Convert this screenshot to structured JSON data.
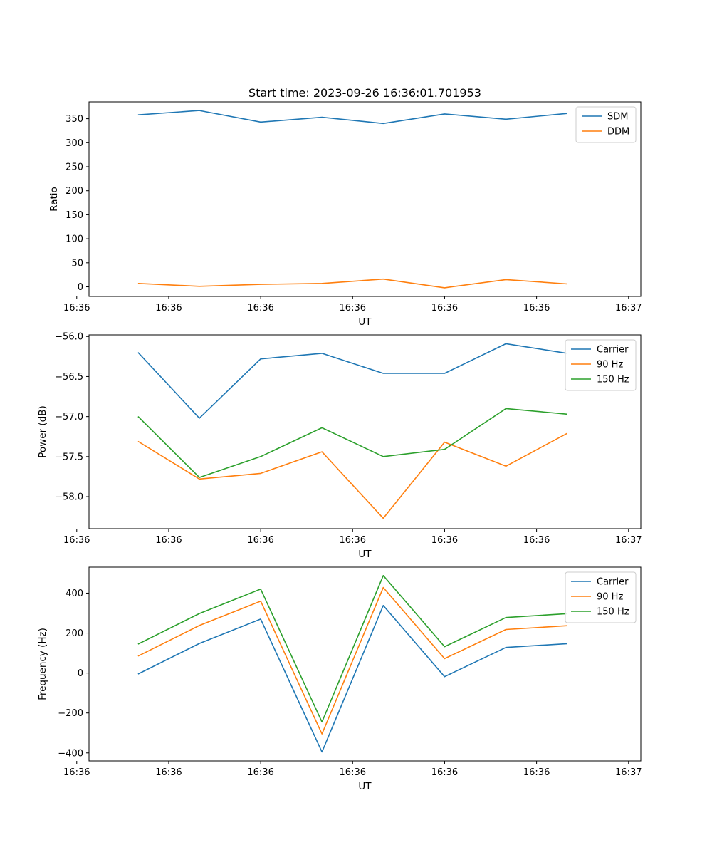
{
  "figure": {
    "title": "Start time: 2023-09-26 16:36:01.701953"
  },
  "colors": {
    "c0": "#1f77b4",
    "c1": "#ff7f0e",
    "c2": "#2ca02c"
  },
  "chart_data": [
    {
      "type": "line",
      "name": "ratio",
      "title": "Start time: 2023-09-26 16:36:01.701953",
      "xlabel": "UT",
      "ylabel": "Ratio",
      "x": [
        1,
        2,
        3,
        4,
        5,
        6,
        7,
        8
      ],
      "xlim": [
        0.2,
        9.2
      ],
      "x_ticks": [
        0,
        1.5,
        3,
        4.5,
        6,
        7.5,
        9
      ],
      "x_tick_labels": [
        "16:36",
        "16:36",
        "16:36",
        "16:36",
        "16:36",
        "16:36",
        "16:37"
      ],
      "ylim": [
        -20,
        385
      ],
      "y_ticks": [
        0,
        50,
        100,
        150,
        200,
        250,
        300,
        350
      ],
      "y_tick_labels": [
        "0",
        "50",
        "100",
        "150",
        "200",
        "250",
        "300",
        "350"
      ],
      "legend": "top-right",
      "series": [
        {
          "name": "SDM",
          "color": "#1f77b4",
          "values": [
            358,
            367,
            343,
            353,
            340,
            360,
            349,
            361
          ]
        },
        {
          "name": "DDM",
          "color": "#ff7f0e",
          "values": [
            7,
            1,
            5,
            7,
            16,
            -2,
            15,
            6
          ]
        }
      ]
    },
    {
      "type": "line",
      "name": "power",
      "xlabel": "UT",
      "ylabel": "Power (dB)",
      "x": [
        1,
        2,
        3,
        4,
        5,
        6,
        7,
        8
      ],
      "xlim": [
        0.2,
        9.2
      ],
      "x_ticks": [
        0,
        1.5,
        3,
        4.5,
        6,
        7.5,
        9
      ],
      "x_tick_labels": [
        "16:36",
        "16:36",
        "16:36",
        "16:36",
        "16:36",
        "16:36",
        "16:37"
      ],
      "ylim": [
        -58.4,
        -55.98
      ],
      "y_ticks": [
        -58.0,
        -57.5,
        -57.0,
        -56.5,
        -56.0
      ],
      "y_tick_labels": [
        "−58.0",
        "−57.5",
        "−57.0",
        "−56.5",
        "−56.0"
      ],
      "legend": "top-right",
      "series": [
        {
          "name": "Carrier",
          "color": "#1f77b4",
          "values": [
            -56.2,
            -57.02,
            -56.28,
            -56.21,
            -56.46,
            -56.46,
            -56.09,
            -56.21
          ]
        },
        {
          "name": "90 Hz",
          "color": "#ff7f0e",
          "values": [
            -57.31,
            -57.78,
            -57.71,
            -57.44,
            -58.27,
            -57.32,
            -57.62,
            -57.21
          ]
        },
        {
          "name": "150 Hz",
          "color": "#2ca02c",
          "values": [
            -57.0,
            -57.76,
            -57.5,
            -57.14,
            -57.5,
            -57.41,
            -56.9,
            -56.97
          ]
        }
      ]
    },
    {
      "type": "line",
      "name": "frequency",
      "xlabel": "UT",
      "ylabel": "Frequency (Hz)",
      "x": [
        1,
        2,
        3,
        4,
        5,
        6,
        7,
        8
      ],
      "xlim": [
        0.2,
        9.2
      ],
      "x_ticks": [
        0,
        1.5,
        3,
        4.5,
        6,
        7.5,
        9
      ],
      "x_tick_labels": [
        "16:36",
        "16:36",
        "16:36",
        "16:36",
        "16:36",
        "16:36",
        "16:37"
      ],
      "ylim": [
        -440,
        530
      ],
      "y_ticks": [
        -400,
        -200,
        0,
        200,
        400
      ],
      "y_tick_labels": [
        "−400",
        "−200",
        "0",
        "200",
        "400"
      ],
      "legend": "top-right",
      "series": [
        {
          "name": "Carrier",
          "color": "#1f77b4",
          "values": [
            -5,
            148,
            270,
            -395,
            338,
            -18,
            128,
            147
          ]
        },
        {
          "name": "90 Hz",
          "color": "#ff7f0e",
          "values": [
            85,
            238,
            360,
            -305,
            428,
            72,
            218,
            237
          ]
        },
        {
          "name": "150 Hz",
          "color": "#2ca02c",
          "values": [
            145,
            298,
            420,
            -245,
            488,
            132,
            278,
            297
          ]
        }
      ]
    }
  ]
}
